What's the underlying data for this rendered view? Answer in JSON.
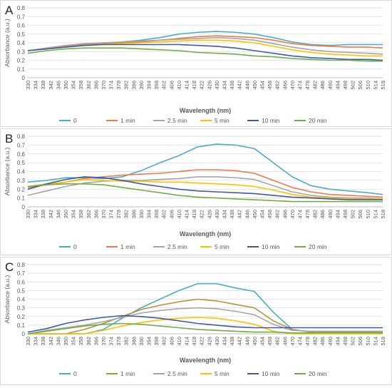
{
  "panels": [
    {
      "letter": "A"
    },
    {
      "letter": "B"
    },
    {
      "letter": "C"
    }
  ],
  "colors": {
    "0": "#4bacc6",
    "1 min": "#f0784a",
    "2.5 min": "#a5a5a5",
    "5 min": "#ffc000",
    "10 min": "#3c5aa8",
    "20 min": "#70ad47",
    "C_1 min": "#b8903a"
  },
  "chart_data": [
    {
      "type": "line",
      "panel": "A",
      "xlabel": "Wavelength (nm)",
      "ylabel": "Absorbance (a.u.)",
      "ylim": [
        0,
        0.8
      ],
      "yticks": [
        0,
        0.1,
        0.2,
        0.3,
        0.4,
        0.5,
        0.6,
        0.7,
        0.8
      ],
      "xticks": [
        "330",
        "334",
        "338",
        "342",
        "346",
        "350",
        "354",
        "358",
        "362",
        "366",
        "370",
        "374",
        "378",
        "382",
        "386",
        "390",
        "394",
        "398",
        "402",
        "406",
        "410",
        "414",
        "418",
        "422",
        "426",
        "430",
        "434",
        "438",
        "442",
        "446",
        "450",
        "454",
        "458",
        "462",
        "466",
        "470",
        "474",
        "478",
        "482",
        "486",
        "490",
        "494",
        "498",
        "502",
        "506",
        "510",
        "514",
        "518"
      ],
      "grid": true,
      "legend": "bottom",
      "x": [
        330,
        340,
        350,
        360,
        370,
        380,
        390,
        400,
        410,
        420,
        430,
        440,
        450,
        460,
        470,
        480,
        490,
        500,
        510,
        520
      ],
      "series": [
        {
          "name": "0",
          "values": [
            0.31,
            0.33,
            0.36,
            0.38,
            0.39,
            0.41,
            0.43,
            0.46,
            0.5,
            0.52,
            0.53,
            0.52,
            0.5,
            0.46,
            0.41,
            0.38,
            0.37,
            0.38,
            0.38,
            0.38
          ]
        },
        {
          "name": "1 min",
          "values": [
            0.31,
            0.33,
            0.36,
            0.38,
            0.39,
            0.4,
            0.41,
            0.43,
            0.45,
            0.47,
            0.48,
            0.47,
            0.46,
            0.43,
            0.39,
            0.37,
            0.36,
            0.35,
            0.35,
            0.34
          ]
        },
        {
          "name": "2.5 min",
          "values": [
            0.31,
            0.34,
            0.37,
            0.39,
            0.4,
            0.41,
            0.42,
            0.43,
            0.44,
            0.45,
            0.46,
            0.45,
            0.43,
            0.39,
            0.35,
            0.32,
            0.3,
            0.29,
            0.28,
            0.27
          ]
        },
        {
          "name": "5 min",
          "values": [
            0.31,
            0.33,
            0.35,
            0.37,
            0.38,
            0.39,
            0.4,
            0.41,
            0.42,
            0.43,
            0.43,
            0.42,
            0.4,
            0.36,
            0.32,
            0.29,
            0.27,
            0.26,
            0.25,
            0.25
          ]
        },
        {
          "name": "10 min",
          "values": [
            0.31,
            0.33,
            0.35,
            0.37,
            0.38,
            0.38,
            0.38,
            0.38,
            0.38,
            0.37,
            0.36,
            0.34,
            0.31,
            0.28,
            0.25,
            0.23,
            0.22,
            0.21,
            0.21,
            0.2
          ]
        },
        {
          "name": "20 min",
          "values": [
            0.28,
            0.31,
            0.33,
            0.34,
            0.34,
            0.34,
            0.33,
            0.32,
            0.31,
            0.29,
            0.28,
            0.27,
            0.25,
            0.24,
            0.22,
            0.21,
            0.2,
            0.2,
            0.19,
            0.19
          ]
        }
      ]
    },
    {
      "type": "line",
      "panel": "B",
      "xlabel": "Wavelength (nm)",
      "ylabel": "Absorbance (a.u.)",
      "ylim": [
        0,
        0.8
      ],
      "yticks": [
        0,
        0.1,
        0.2,
        0.3,
        0.4,
        0.5,
        0.6,
        0.7,
        0.8
      ],
      "xticks": [
        "330",
        "334",
        "338",
        "342",
        "346",
        "350",
        "354",
        "358",
        "362",
        "366",
        "370",
        "374",
        "378",
        "382",
        "386",
        "390",
        "394",
        "398",
        "402",
        "406",
        "410",
        "414",
        "418",
        "422",
        "426",
        "430",
        "434",
        "438",
        "442",
        "446",
        "450",
        "454",
        "458",
        "462",
        "466",
        "470",
        "474",
        "478",
        "482",
        "486",
        "490",
        "494",
        "498",
        "502",
        "506",
        "510",
        "514",
        "518"
      ],
      "grid": true,
      "legend": "bottom",
      "x": [
        330,
        340,
        350,
        360,
        370,
        380,
        390,
        400,
        410,
        420,
        430,
        440,
        450,
        460,
        470,
        480,
        490,
        500,
        510,
        520
      ],
      "series": [
        {
          "name": "0",
          "values": [
            0.28,
            0.3,
            0.33,
            0.33,
            0.32,
            0.34,
            0.41,
            0.5,
            0.58,
            0.68,
            0.71,
            0.7,
            0.66,
            0.5,
            0.34,
            0.24,
            0.2,
            0.18,
            0.16,
            0.14
          ]
        },
        {
          "name": "1 min",
          "values": [
            0.22,
            0.25,
            0.28,
            0.32,
            0.34,
            0.36,
            0.37,
            0.38,
            0.4,
            0.42,
            0.42,
            0.41,
            0.38,
            0.3,
            0.22,
            0.17,
            0.14,
            0.13,
            0.12,
            0.11
          ]
        },
        {
          "name": "2.5 min",
          "values": [
            0.13,
            0.18,
            0.23,
            0.27,
            0.29,
            0.3,
            0.3,
            0.31,
            0.32,
            0.34,
            0.34,
            0.33,
            0.31,
            0.24,
            0.17,
            0.13,
            0.11,
            0.1,
            0.1,
            0.09
          ]
        },
        {
          "name": "5 min",
          "values": [
            0.23,
            0.26,
            0.28,
            0.31,
            0.3,
            0.29,
            0.29,
            0.28,
            0.28,
            0.27,
            0.26,
            0.25,
            0.23,
            0.19,
            0.14,
            0.11,
            0.1,
            0.09,
            0.09,
            0.09
          ]
        },
        {
          "name": "10 min",
          "values": [
            0.2,
            0.26,
            0.31,
            0.34,
            0.33,
            0.3,
            0.26,
            0.23,
            0.2,
            0.18,
            0.17,
            0.16,
            0.15,
            0.13,
            0.11,
            0.1,
            0.09,
            0.08,
            0.08,
            0.08
          ]
        },
        {
          "name": "20 min",
          "values": [
            0.23,
            0.25,
            0.26,
            0.26,
            0.25,
            0.22,
            0.19,
            0.16,
            0.13,
            0.11,
            0.1,
            0.09,
            0.08,
            0.07,
            0.06,
            0.06,
            0.06,
            0.06,
            0.06,
            0.06
          ]
        }
      ]
    },
    {
      "type": "line",
      "panel": "C",
      "xlabel": "Wavelength (nm)",
      "ylabel": "Absorbance (a.u.)",
      "ylim": [
        0,
        0.8
      ],
      "yticks": [
        0,
        0.1,
        0.2,
        0.3,
        0.4,
        0.5,
        0.6,
        0.7,
        0.8
      ],
      "xticks": [
        "330",
        "334",
        "338",
        "342",
        "346",
        "350",
        "354",
        "358",
        "362",
        "366",
        "370",
        "374",
        "378",
        "382",
        "386",
        "390",
        "394",
        "398",
        "402",
        "406",
        "410",
        "414",
        "418",
        "422",
        "426",
        "430",
        "434",
        "438",
        "442",
        "446",
        "450",
        "454",
        "458",
        "462",
        "466",
        "470",
        "474",
        "478",
        "482",
        "486",
        "490",
        "494",
        "498",
        "502",
        "506",
        "510",
        "514",
        "518"
      ],
      "grid": true,
      "legend": "bottom",
      "x": [
        330,
        340,
        350,
        360,
        370,
        380,
        390,
        400,
        410,
        420,
        430,
        440,
        450,
        460,
        470,
        480,
        490,
        500,
        510,
        520
      ],
      "series": [
        {
          "name": "0",
          "values": [
            0.0,
            0.0,
            0.0,
            0.0,
            0.05,
            0.18,
            0.3,
            0.4,
            0.5,
            0.58,
            0.58,
            0.53,
            0.49,
            0.25,
            0.05,
            0.02,
            0.02,
            0.02,
            0.02,
            0.02
          ]
        },
        {
          "name": "1 min",
          "values": [
            0.0,
            0.0,
            0.0,
            0.05,
            0.12,
            0.2,
            0.28,
            0.33,
            0.37,
            0.4,
            0.38,
            0.34,
            0.3,
            0.15,
            0.05,
            0.02,
            0.02,
            0.02,
            0.02,
            0.02
          ]
        },
        {
          "name": "2.5 min",
          "values": [
            0.0,
            0.04,
            0.07,
            0.1,
            0.14,
            0.19,
            0.24,
            0.27,
            0.29,
            0.3,
            0.29,
            0.26,
            0.22,
            0.11,
            0.04,
            0.03,
            0.03,
            0.03,
            0.03,
            0.03
          ]
        },
        {
          "name": "5 min",
          "values": [
            0.0,
            0.0,
            0.0,
            0.0,
            0.04,
            0.09,
            0.13,
            0.16,
            0.18,
            0.19,
            0.18,
            0.15,
            0.11,
            0.03,
            0.0,
            0.0,
            0.0,
            0.0,
            0.0,
            0.0
          ]
        },
        {
          "name": "10 min",
          "values": [
            0.02,
            0.06,
            0.12,
            0.16,
            0.19,
            0.21,
            0.2,
            0.18,
            0.15,
            0.12,
            0.1,
            0.08,
            0.07,
            0.07,
            0.07,
            0.07,
            0.07,
            0.07,
            0.07,
            0.07
          ]
        },
        {
          "name": "20 min",
          "values": [
            0.0,
            0.03,
            0.06,
            0.09,
            0.11,
            0.12,
            0.11,
            0.09,
            0.07,
            0.05,
            0.04,
            0.03,
            0.02,
            0.02,
            0.01,
            0.01,
            0.01,
            0.01,
            0.01,
            0.01
          ]
        }
      ]
    }
  ]
}
